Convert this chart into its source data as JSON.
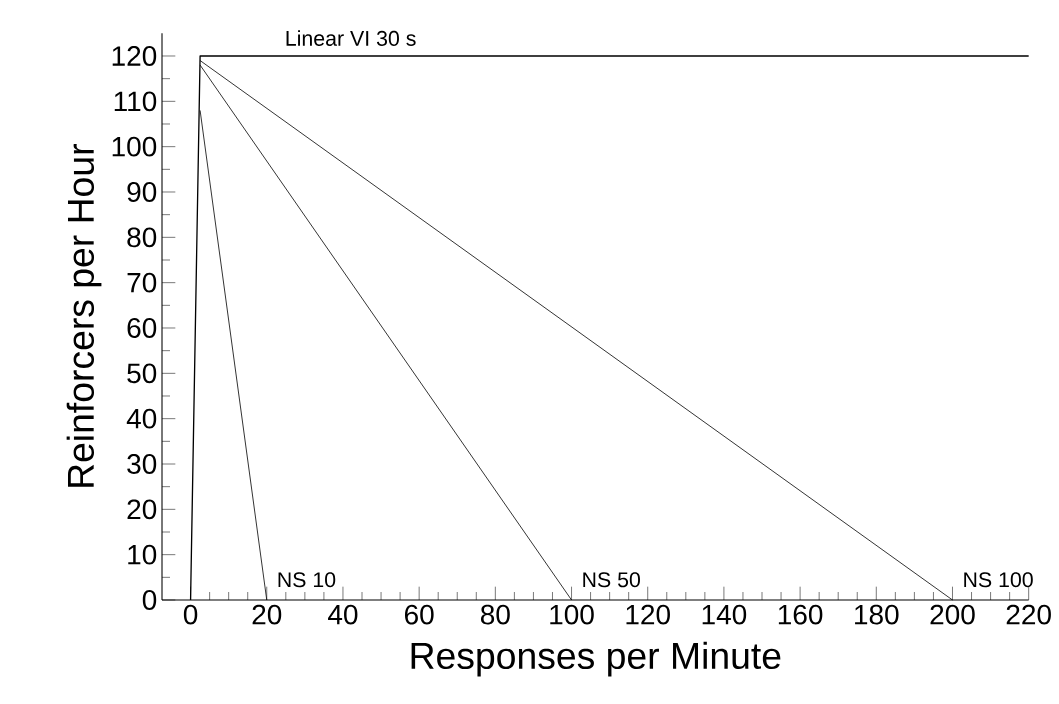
{
  "chart_data": {
    "type": "line",
    "xlabel": "Responses per Minute",
    "ylabel": "Reinforcers per Hour",
    "xlim": [
      -7.5,
      220
    ],
    "ylim": [
      0,
      125
    ],
    "xticks": [
      0,
      20,
      40,
      60,
      80,
      100,
      120,
      140,
      160,
      180,
      200,
      220
    ],
    "yticks": [
      0,
      10,
      20,
      30,
      40,
      50,
      60,
      70,
      80,
      90,
      100,
      110,
      120
    ],
    "grid": false,
    "legend": false,
    "marker": "none",
    "line_style": "solid",
    "series": [
      {
        "name": "Linear VI 30 s",
        "color": "#000000",
        "x": [
          0,
          2.5,
          220
        ],
        "values": [
          0,
          120,
          120
        ]
      },
      {
        "name": "NS 10",
        "color": "#000000",
        "x": [
          2.5,
          20
        ],
        "values": [
          108,
          0
        ]
      },
      {
        "name": "NS 50",
        "color": "#000000",
        "x": [
          2.5,
          100
        ],
        "values": [
          118,
          0
        ]
      },
      {
        "name": "NS 100",
        "color": "#000000",
        "x": [
          2.5,
          200
        ],
        "values": [
          119,
          0
        ]
      }
    ]
  }
}
